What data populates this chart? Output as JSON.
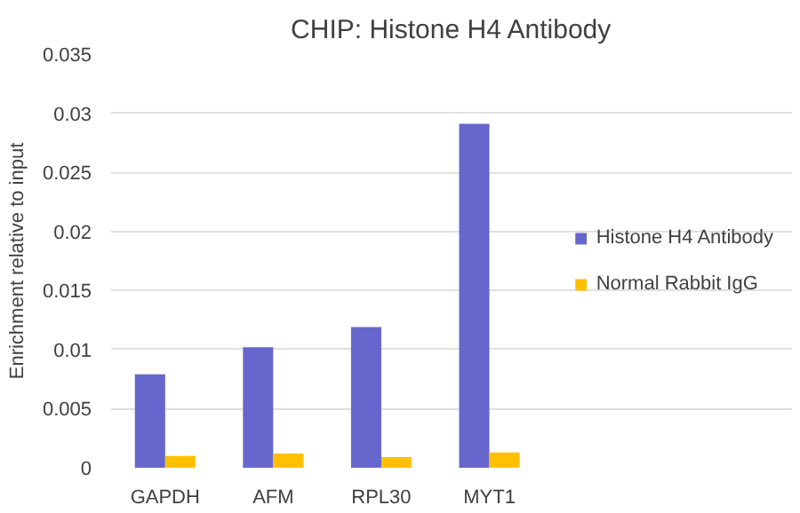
{
  "chart_data": {
    "type": "bar",
    "title": "CHIP: Histone H4 Antibody",
    "ylabel": "Enrichment relative to input",
    "categories": [
      "GAPDH",
      "AFM",
      "RPL30",
      "MYT1"
    ],
    "series": [
      {
        "name": "Histone H4 Antibody",
        "color": "#6666cc",
        "values": [
          0.0079,
          0.0102,
          0.0119,
          0.0291
        ]
      },
      {
        "name": "Normal Rabbit IgG",
        "color": "#ffc000",
        "values": [
          0.001,
          0.0012,
          0.0009,
          0.0013
        ]
      }
    ],
    "ylim": [
      0,
      0.035
    ],
    "yticks": [
      0,
      0.005,
      0.01,
      0.015,
      0.02,
      0.025,
      0.03,
      0.035
    ],
    "grid": "y",
    "legend": "right"
  }
}
